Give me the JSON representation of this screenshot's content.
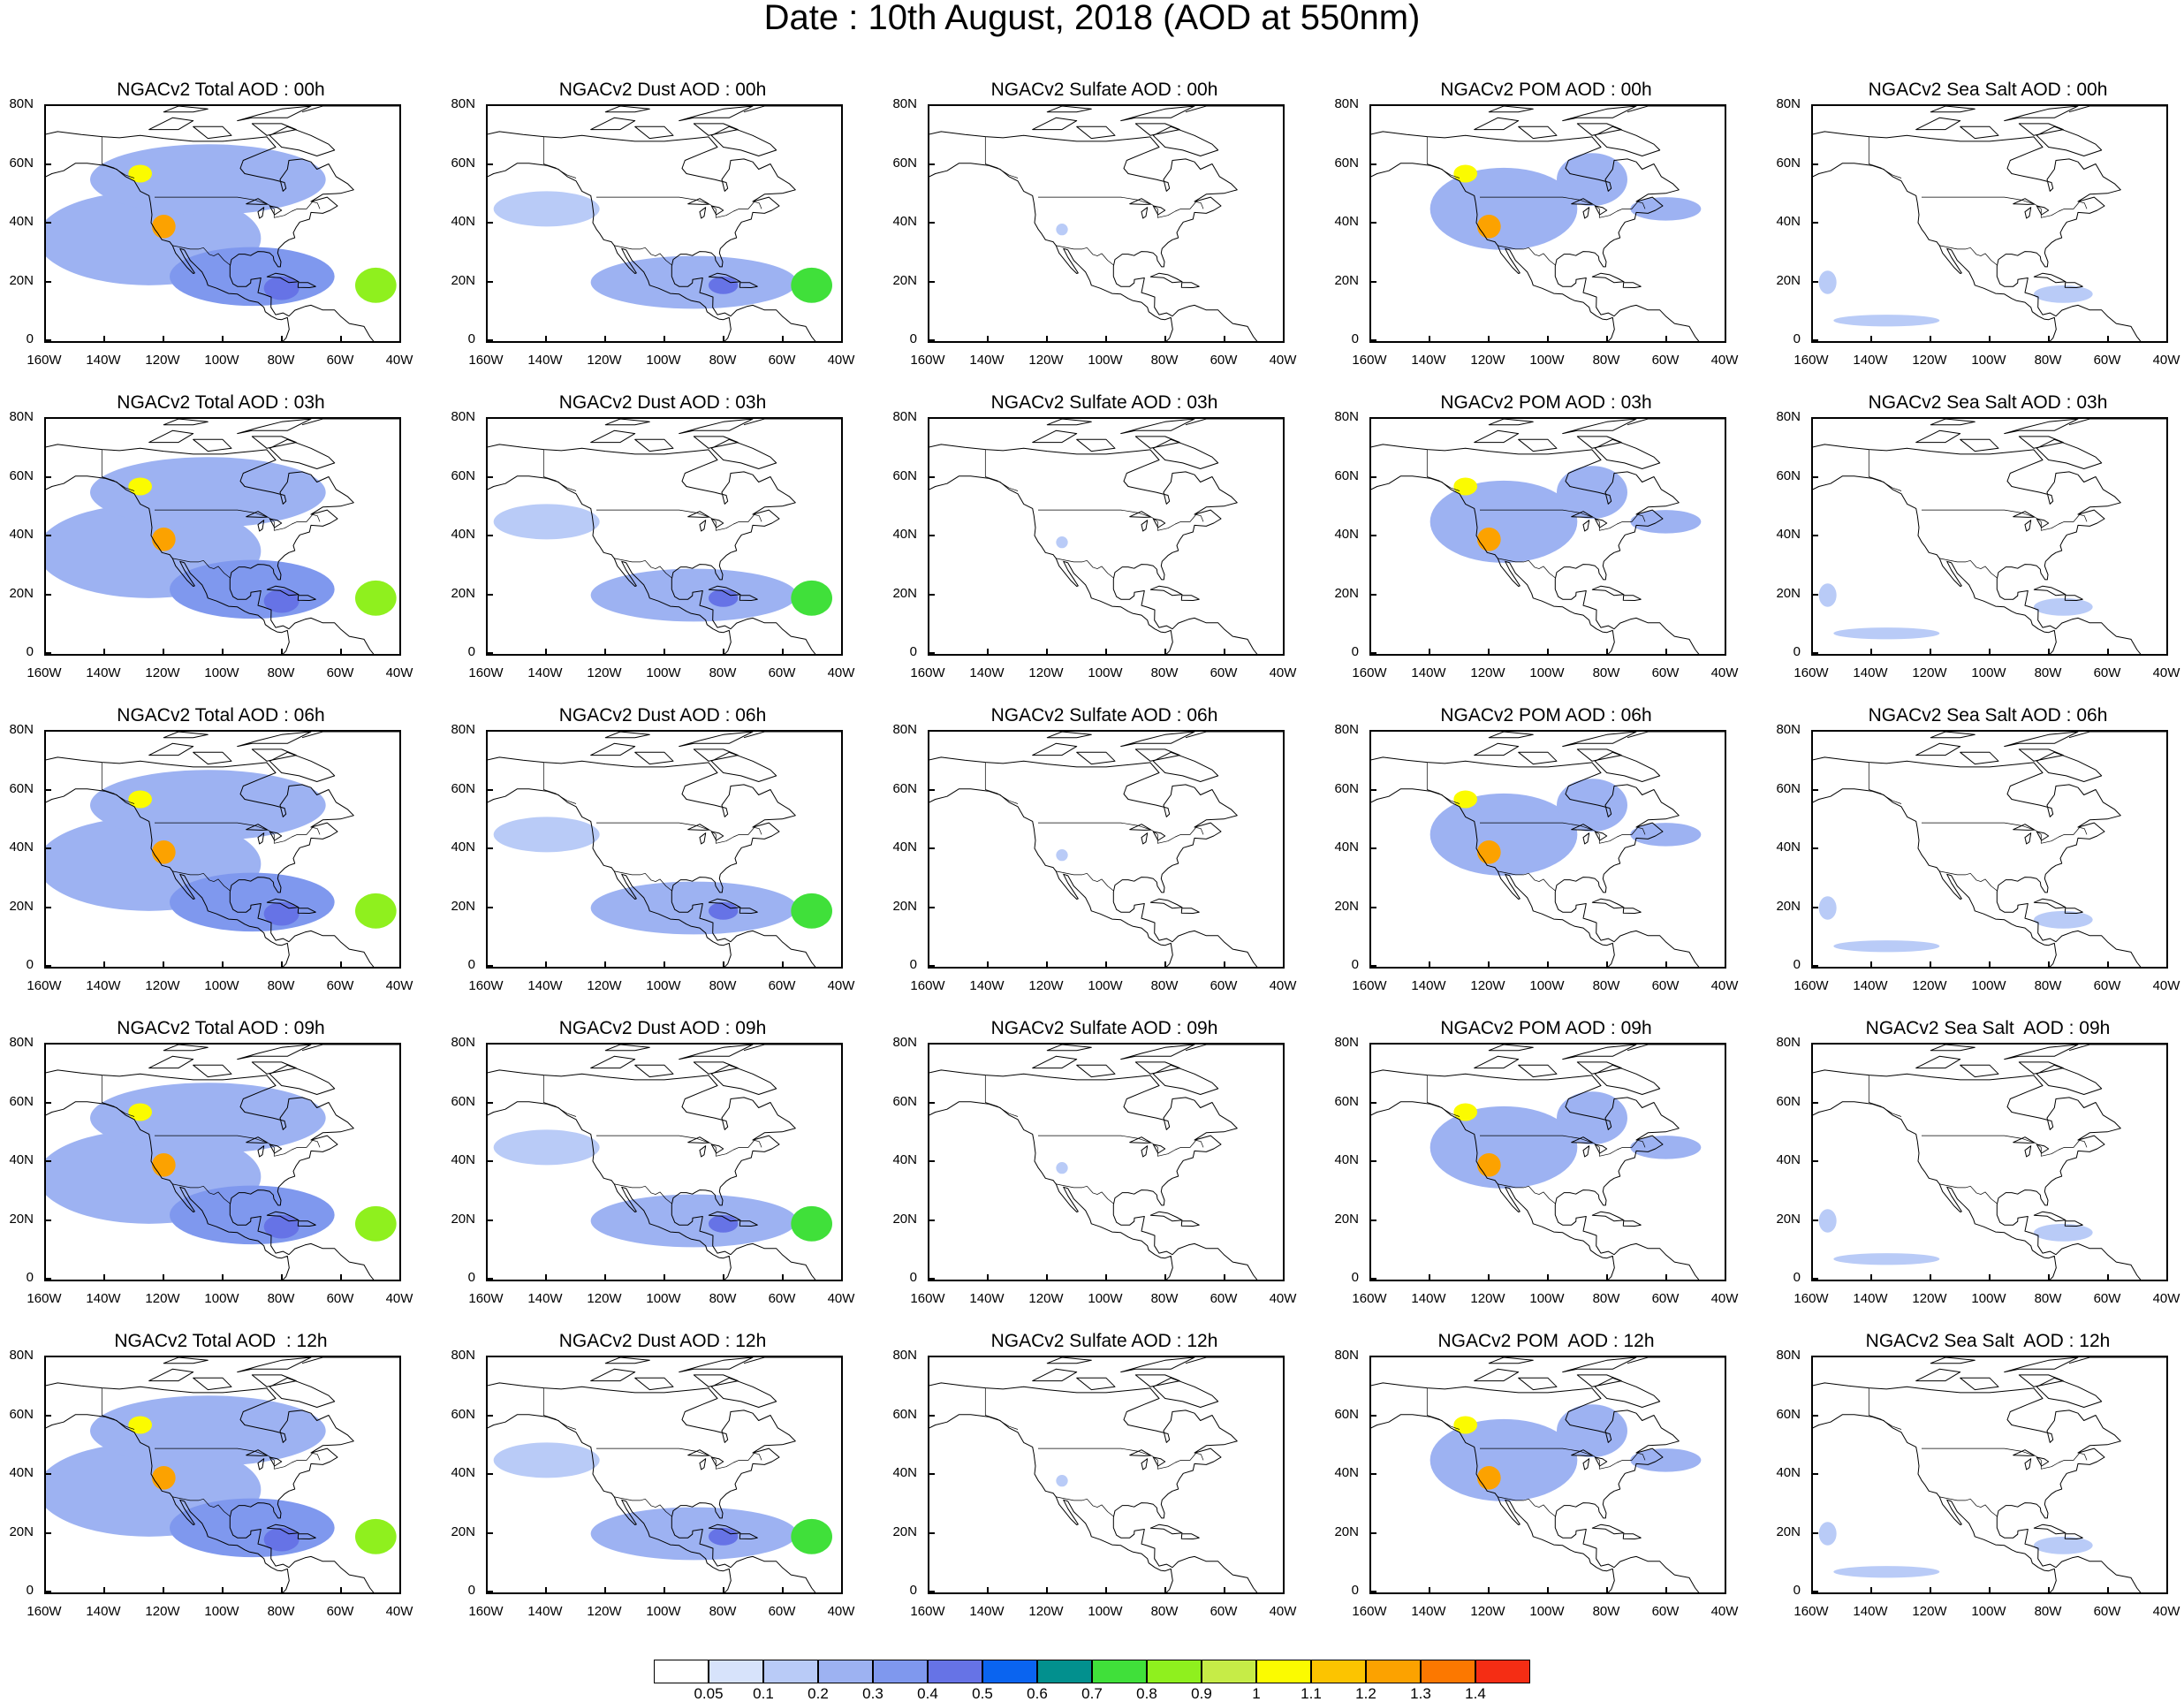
{
  "figure": {
    "title": "Date : 10th August, 2018 (AOD at 550nm)"
  },
  "map_axes": {
    "lat_labels": [
      "80N",
      "60N",
      "40N",
      "20N",
      "0"
    ],
    "lon_labels": [
      "160W",
      "140W",
      "120W",
      "100W",
      "80W",
      "60W",
      "40W"
    ],
    "lat_range": [
      0,
      80
    ],
    "lon_range": [
      -160,
      -40
    ]
  },
  "panels": [
    {
      "title": "NGACv2 Total AOD : 00h",
      "species": "total",
      "hour": "00"
    },
    {
      "title": "NGACv2 Dust AOD : 00h",
      "species": "dust",
      "hour": "00"
    },
    {
      "title": "NGACv2 Sulfate AOD : 00h",
      "species": "sulfate",
      "hour": "00"
    },
    {
      "title": "NGACv2 POM AOD : 00h",
      "species": "pom",
      "hour": "00"
    },
    {
      "title": "NGACv2 Sea Salt AOD : 00h",
      "species": "seasalt",
      "hour": "00"
    },
    {
      "title": "NGACv2 Total AOD : 03h",
      "species": "total",
      "hour": "03"
    },
    {
      "title": "NGACv2 Dust AOD : 03h",
      "species": "dust",
      "hour": "03"
    },
    {
      "title": "NGACv2 Sulfate AOD : 03h",
      "species": "sulfate",
      "hour": "03"
    },
    {
      "title": "NGACv2 POM AOD : 03h",
      "species": "pom",
      "hour": "03"
    },
    {
      "title": "NGACv2 Sea Salt AOD : 03h",
      "species": "seasalt",
      "hour": "03"
    },
    {
      "title": "NGACv2 Total AOD : 06h",
      "species": "total",
      "hour": "06"
    },
    {
      "title": "NGACv2 Dust AOD : 06h",
      "species": "dust",
      "hour": "06"
    },
    {
      "title": "NGACv2 Sulfate AOD : 06h",
      "species": "sulfate",
      "hour": "06"
    },
    {
      "title": "NGACv2 POM AOD : 06h",
      "species": "pom",
      "hour": "06"
    },
    {
      "title": "NGACv2 Sea Salt AOD : 06h",
      "species": "seasalt",
      "hour": "06"
    },
    {
      "title": "NGACv2 Total AOD : 09h",
      "species": "total",
      "hour": "09"
    },
    {
      "title": "NGACv2 Dust AOD : 09h",
      "species": "dust",
      "hour": "09"
    },
    {
      "title": "NGACv2 Sulfate AOD : 09h",
      "species": "sulfate",
      "hour": "09"
    },
    {
      "title": "NGACv2 POM AOD : 09h",
      "species": "pom",
      "hour": "09"
    },
    {
      "title": "NGACv2 Sea Salt  AOD : 09h",
      "species": "seasalt",
      "hour": "09"
    },
    {
      "title": "NGACv2 Total AOD  : 12h",
      "species": "total",
      "hour": "12"
    },
    {
      "title": "NGACv2 Dust AOD : 12h",
      "species": "dust",
      "hour": "12"
    },
    {
      "title": "NGACv2 Sulfate AOD : 12h",
      "species": "sulfate",
      "hour": "12"
    },
    {
      "title": "NGACv2 POM  AOD : 12h",
      "species": "pom",
      "hour": "12"
    },
    {
      "title": "NGACv2 Sea Salt  AOD : 12h",
      "species": "seasalt",
      "hour": "12"
    }
  ],
  "colorbar": {
    "labels": [
      "0.05",
      "0.1",
      "0.2",
      "0.3",
      "0.4",
      "0.5",
      "0.6",
      "0.7",
      "0.8",
      "0.9",
      "1",
      "1.1",
      "1.2",
      "1.3",
      "1.4"
    ],
    "colors": [
      "#ffffff",
      "#d7e3fb",
      "#b9cbf7",
      "#9db2f2",
      "#7f98ee",
      "#6673e6",
      "#0a64f0",
      "#02908e",
      "#40e03a",
      "#8ff01e",
      "#c6ec47",
      "#fbfb00",
      "#fcc400",
      "#fca200",
      "#fc7800",
      "#f52d14"
    ]
  },
  "regions": {
    "total": [
      {
        "lon": -125,
        "lat": 35,
        "v": 0.25,
        "rx": 38,
        "ry": 16
      },
      {
        "lon": -90,
        "lat": 22,
        "v": 0.3,
        "rx": 28,
        "ry": 10
      },
      {
        "lon": -105,
        "lat": 55,
        "v": 0.25,
        "rx": 40,
        "ry": 12
      },
      {
        "lon": -120,
        "lat": 39,
        "v": 1.25,
        "rx": 4,
        "ry": 4
      },
      {
        "lon": -128,
        "lat": 57,
        "v": 1.05,
        "rx": 4,
        "ry": 3
      },
      {
        "lon": -48,
        "lat": 19,
        "v": 0.85,
        "rx": 7,
        "ry": 6
      },
      {
        "lon": -80,
        "lat": 18,
        "v": 0.45,
        "rx": 6,
        "ry": 4
      }
    ],
    "dust": [
      {
        "lon": -90,
        "lat": 20,
        "v": 0.2,
        "rx": 35,
        "ry": 9
      },
      {
        "lon": -140,
        "lat": 45,
        "v": 0.1,
        "rx": 18,
        "ry": 6
      },
      {
        "lon": -50,
        "lat": 19,
        "v": 0.75,
        "rx": 7,
        "ry": 6
      },
      {
        "lon": -80,
        "lat": 19,
        "v": 0.4,
        "rx": 5,
        "ry": 3
      }
    ],
    "sulfate": [
      {
        "lon": -115,
        "lat": 38,
        "v": 0.1,
        "rx": 2,
        "ry": 2
      }
    ],
    "pom": [
      {
        "lon": -115,
        "lat": 45,
        "v": 0.2,
        "rx": 25,
        "ry": 14
      },
      {
        "lon": -85,
        "lat": 55,
        "v": 0.25,
        "rx": 12,
        "ry": 9
      },
      {
        "lon": -120,
        "lat": 39,
        "v": 1.25,
        "rx": 4,
        "ry": 4
      },
      {
        "lon": -128,
        "lat": 57,
        "v": 1.05,
        "rx": 4,
        "ry": 3
      },
      {
        "lon": -60,
        "lat": 45,
        "v": 0.2,
        "rx": 12,
        "ry": 4
      }
    ],
    "seasalt": [
      {
        "lon": -75,
        "lat": 16,
        "v": 0.1,
        "rx": 10,
        "ry": 3
      },
      {
        "lon": -135,
        "lat": 7,
        "v": 0.1,
        "rx": 18,
        "ry": 2
      },
      {
        "lon": -155,
        "lat": 20,
        "v": 0.1,
        "rx": 3,
        "ry": 4
      }
    ]
  }
}
